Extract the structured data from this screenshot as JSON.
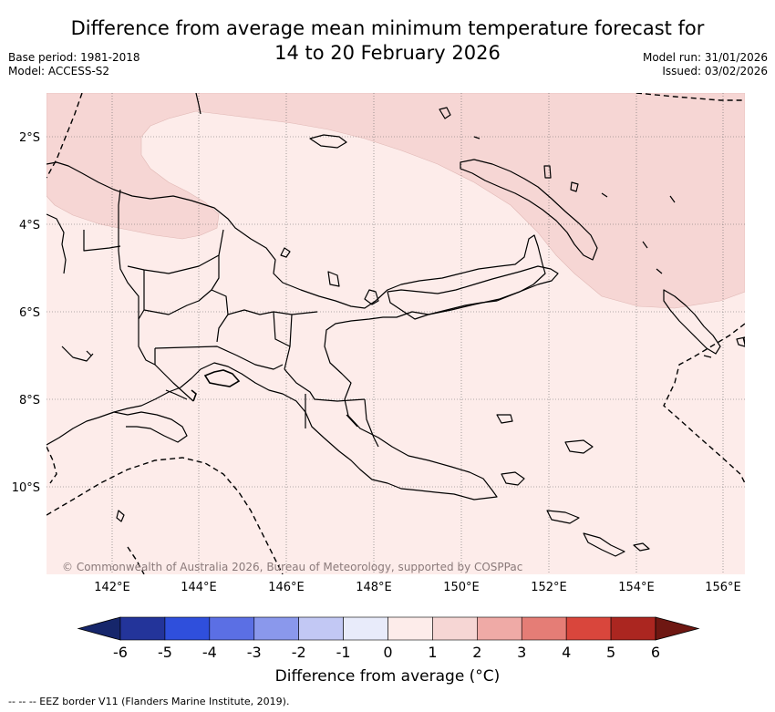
{
  "title": {
    "line1": "Difference from average mean minimum temperature forecast for",
    "line2": "14 to 20 February 2026"
  },
  "meta": {
    "base_period": "Base period: 1981-2018",
    "model": "Model: ACCESS-S2",
    "model_run": "Model run: 31/01/2026",
    "issued": "Issued: 03/02/2026"
  },
  "map": {
    "lat_labels": [
      "2°S",
      "4°S",
      "6°S",
      "8°S",
      "10°S"
    ],
    "lon_labels": [
      "142°E",
      "144°E",
      "146°E",
      "148°E",
      "150°E",
      "152°E",
      "154°E",
      "156°E"
    ],
    "copyright": "© Commonwealth of Australia 2026, Bureau of Meteorology, supported by COSPPac",
    "region_colors": {
      "zero_to_one": "#fdecea",
      "one_to_two": "#f6d6d4"
    }
  },
  "colorbar": {
    "ticks": [
      "-6",
      "-5",
      "-4",
      "-3",
      "-2",
      "-1",
      "0",
      "1",
      "2",
      "3",
      "4",
      "5",
      "6"
    ],
    "colors": [
      "#23349a",
      "#2f4fdc",
      "#5b6fe4",
      "#8a98ec",
      "#c2c8f4",
      "#e8ebfa",
      "#fdecea",
      "#f6d6d4",
      "#efaaa6",
      "#e57d76",
      "#d9463c",
      "#ab2620"
    ],
    "low_extend_color": "#16266b",
    "high_extend_color": "#6e1712",
    "label": "Difference from average (°C)"
  },
  "footnote": "-- -- -- EEZ border V11 (Flanders Marine Institute, 2019)."
}
